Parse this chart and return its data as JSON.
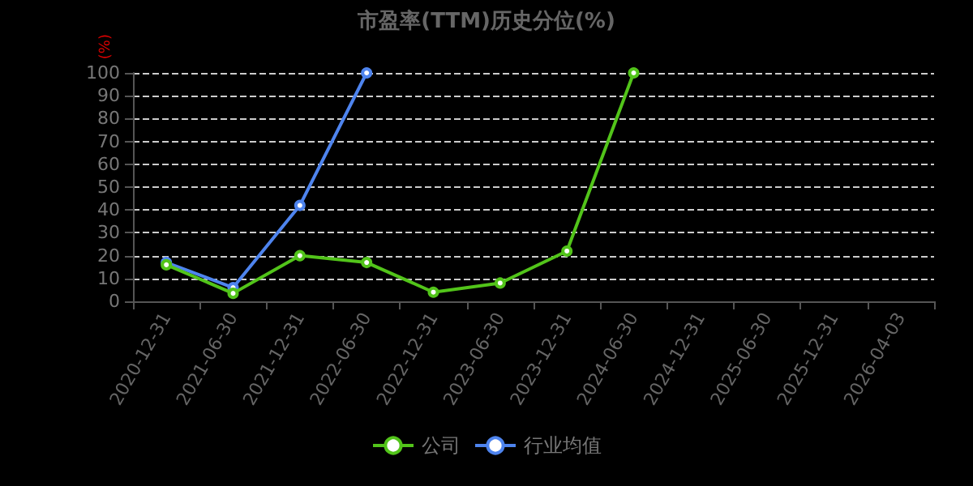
{
  "chart_data": {
    "type": "line",
    "title": "市盈率(TTM)历史分位(%)",
    "ylabel": "(%)",
    "categories": [
      "2020-12-31",
      "2021-06-30",
      "2021-12-31",
      "2022-06-30",
      "2022-12-31",
      "2023-06-30",
      "2023-12-31",
      "2024-06-30",
      "2024-12-31",
      "2025-06-30",
      "2025-12-31",
      "2026-04-03"
    ],
    "series": [
      {
        "name": "公司",
        "color": "#52c41a",
        "values": [
          16,
          3.5,
          20,
          17,
          4,
          8,
          22,
          100,
          null,
          null,
          null,
          null
        ]
      },
      {
        "name": "行业均值",
        "color": "#4e84ee",
        "values": [
          17,
          6,
          42,
          100,
          null,
          null,
          null,
          null,
          null,
          null,
          null,
          null
        ]
      }
    ],
    "ylim": [
      0,
      100
    ],
    "yticks": [
      0,
      10,
      20,
      30,
      40,
      50,
      60,
      70,
      80,
      90,
      100
    ],
    "grid": "y",
    "legend": "bottom",
    "marker": "circle",
    "line_style": "solid"
  }
}
